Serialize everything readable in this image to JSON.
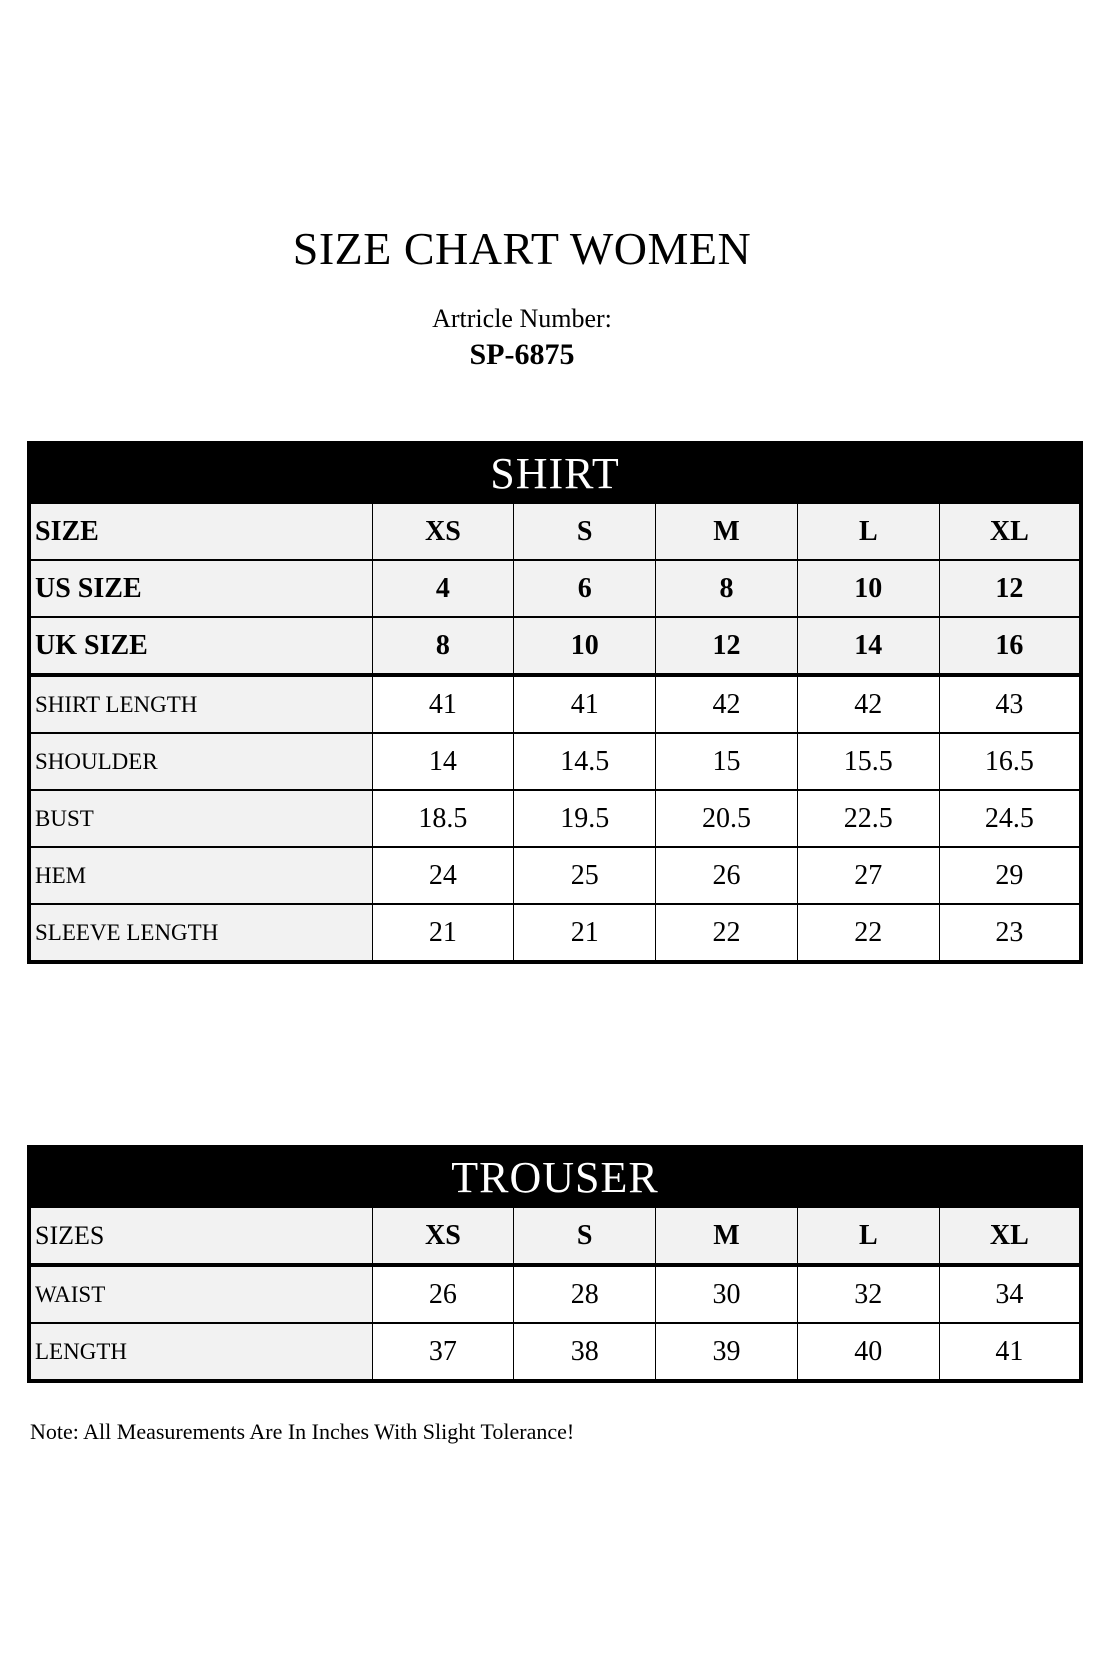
{
  "header": {
    "title": "SIZE CHART WOMEN",
    "article_label": "Artricle Number:",
    "article_number": "SP-6875"
  },
  "colors": {
    "header_bar_bg": "#000000",
    "header_bar_text": "#ffffff",
    "shaded_cell_bg": "#f2f2f2",
    "border": "#000000",
    "page_bg": "#ffffff"
  },
  "shirt_table": {
    "title": "SHIRT",
    "size_rows": [
      {
        "label": "SIZE",
        "values": [
          "XS",
          "S",
          "M",
          "L",
          "XL"
        ]
      },
      {
        "label": "US SIZE",
        "values": [
          "4",
          "6",
          "8",
          "10",
          "12"
        ]
      },
      {
        "label": "UK SIZE",
        "values": [
          "8",
          "10",
          "12",
          "14",
          "16"
        ]
      }
    ],
    "measure_rows": [
      {
        "label": "SHIRT LENGTH",
        "values": [
          "41",
          "41",
          "42",
          "42",
          "43"
        ]
      },
      {
        "label": "SHOULDER",
        "values": [
          "14",
          "14.5",
          "15",
          "15.5",
          "16.5"
        ]
      },
      {
        "label": "BUST",
        "values": [
          "18.5",
          "19.5",
          "20.5",
          "22.5",
          "24.5"
        ]
      },
      {
        "label": "HEM",
        "values": [
          "24",
          "25",
          "26",
          "27",
          "29"
        ]
      },
      {
        "label": "SLEEVE LENGTH",
        "values": [
          "21",
          "21",
          "22",
          "22",
          "23"
        ]
      }
    ]
  },
  "trouser_table": {
    "title": "TROUSER",
    "size_rows": [
      {
        "label": "SIZES",
        "values": [
          "XS",
          "S",
          "M",
          "L",
          "XL"
        ]
      }
    ],
    "measure_rows": [
      {
        "label": "WAIST",
        "values": [
          "26",
          "28",
          "30",
          "32",
          "34"
        ]
      },
      {
        "label": "LENGTH",
        "values": [
          "37",
          "38",
          "39",
          "40",
          "41"
        ]
      }
    ]
  },
  "note": "Note: All Measurements Are In Inches With Slight Tolerance!"
}
